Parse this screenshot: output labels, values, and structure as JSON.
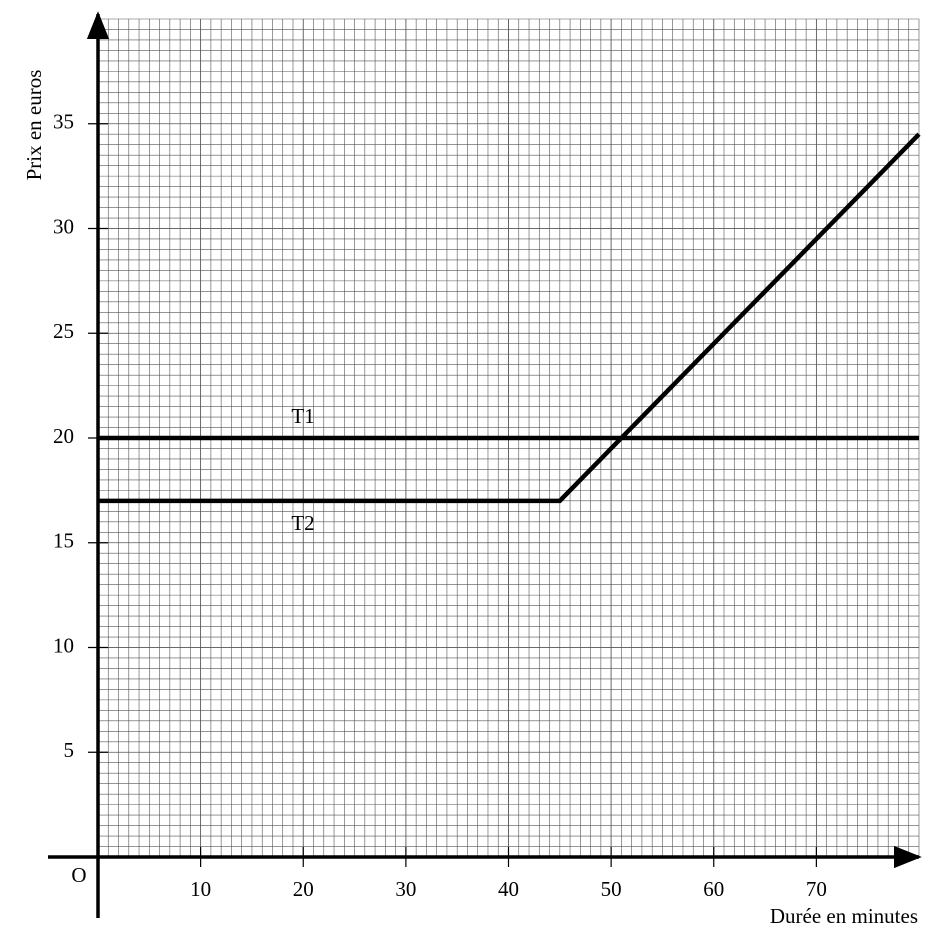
{
  "chart_data": {
    "type": "line",
    "x_label": "Durée en minutes",
    "y_label": "Prix en euros",
    "origin_label": "O",
    "xlim": [
      0,
      80
    ],
    "ylim": [
      0,
      40
    ],
    "xticks": [
      10,
      20,
      30,
      40,
      50,
      60,
      70
    ],
    "yticks": [
      5,
      10,
      15,
      20,
      25,
      30,
      35
    ],
    "grid": true,
    "series": [
      {
        "name": "T1",
        "color": "#000000",
        "x": [
          0,
          80
        ],
        "values": [
          20,
          20
        ]
      },
      {
        "name": "T2",
        "color": "#000000",
        "x": [
          0,
          45,
          80
        ],
        "values": [
          17,
          17,
          34.5
        ]
      }
    ]
  }
}
